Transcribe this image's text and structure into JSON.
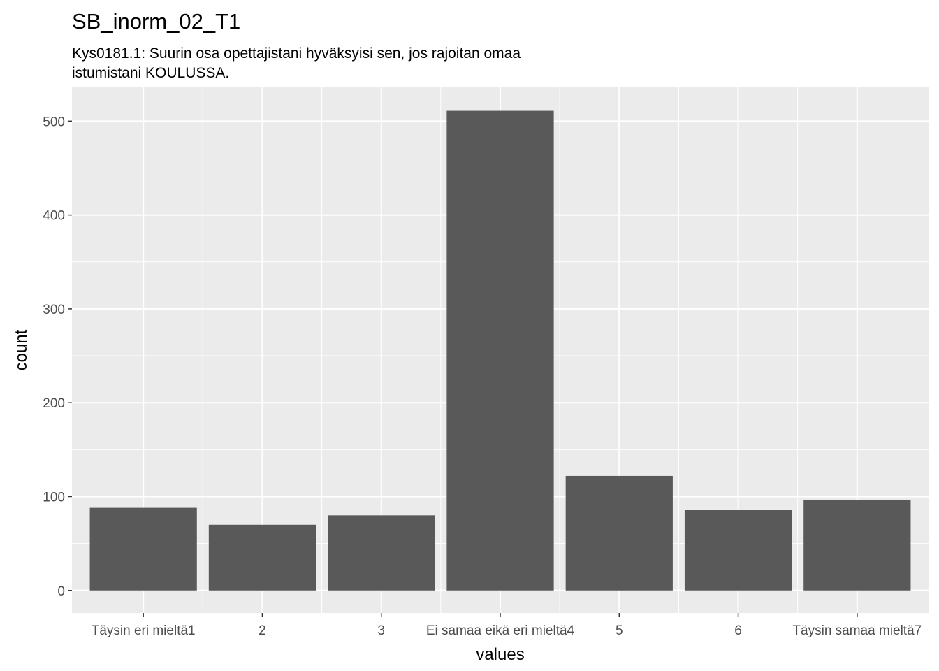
{
  "chart_data": {
    "type": "bar",
    "title": "SB_inorm_02_T1",
    "subtitle_lines": [
      "Kys0181.1: Suurin osa opettajistani hyväksyisi sen, jos rajoitan omaa",
      "istumistani KOULUSSA."
    ],
    "xlabel": "values",
    "ylabel": "count",
    "categories": [
      "Täysin eri mieltä1",
      "2",
      "3",
      "Ei samaa eikä eri mieltä4",
      "5",
      "6",
      "Täysin samaa mieltä7"
    ],
    "values": [
      88,
      70,
      80,
      511,
      122,
      86,
      96
    ],
    "yticks": [
      0,
      100,
      200,
      300,
      400,
      500
    ],
    "ylim": [
      -24.0,
      536.0
    ],
    "grid": true,
    "bar_color": "#595959",
    "panel_color": "#ebebeb",
    "grid_color": "#ffffff"
  }
}
